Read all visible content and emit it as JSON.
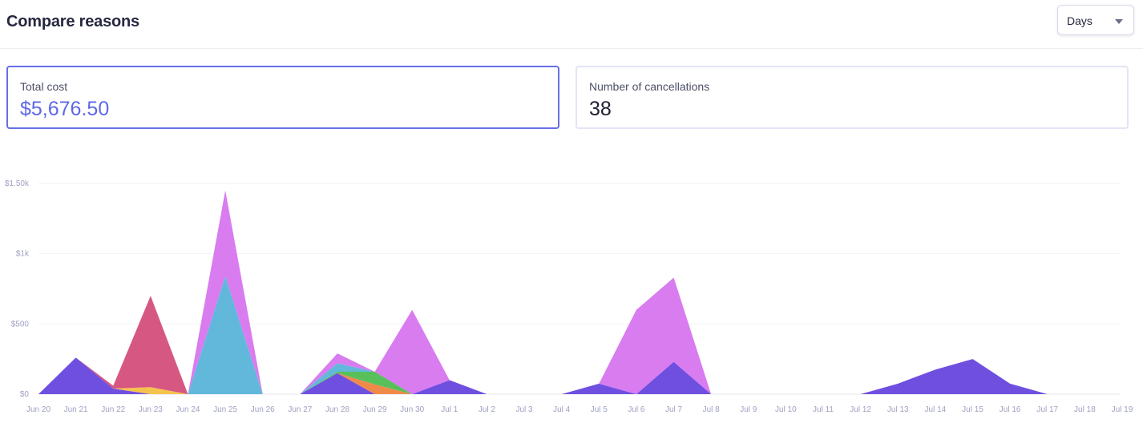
{
  "header": {
    "title": "Compare reasons"
  },
  "period_select": {
    "value": "Days"
  },
  "metrics": [
    {
      "label": "Total cost",
      "value": "$5,676.50",
      "selected": true
    },
    {
      "label": "Number of cancellations",
      "value": "38",
      "selected": false
    }
  ],
  "colors": {
    "accent": "#5d68e8",
    "violet": "#6f4fe0",
    "pink": "#d87cf0",
    "rose": "#d65782",
    "sky": "#61b8db",
    "green": "#58c05a",
    "orange": "#ef8a4a",
    "yellow": "#f6c24e"
  },
  "chart_data": {
    "type": "area",
    "stacked": true,
    "categories": [
      "Jun 20",
      "Jun 21",
      "Jun 22",
      "Jun 23",
      "Jun 24",
      "Jun 25",
      "Jun 26",
      "Jun 27",
      "Jun 28",
      "Jun 29",
      "Jun 30",
      "Jul 1",
      "Jul 2",
      "Jul 3",
      "Jul 4",
      "Jul 5",
      "Jul 6",
      "Jul 7",
      "Jul 8",
      "Jul 9",
      "Jul 10",
      "Jul 11",
      "Jul 12",
      "Jul 13",
      "Jul 14",
      "Jul 15",
      "Jul 16",
      "Jul 17",
      "Jul 18",
      "Jul 19"
    ],
    "y_ticks": [
      "$0",
      "$500",
      "$1k",
      "$1.50k"
    ],
    "ylim": [
      0,
      1500
    ],
    "grid": true,
    "series": [
      {
        "color": "#6f4fe0",
        "values": [
          0,
          260,
          40,
          0,
          0,
          0,
          0,
          0,
          150,
          0,
          0,
          100,
          0,
          0,
          0,
          75,
          0,
          230,
          0,
          0,
          0,
          0,
          0,
          75,
          175,
          250,
          75,
          0,
          0,
          0
        ]
      },
      {
        "color": "#f6c24e",
        "values": [
          0,
          0,
          0,
          50,
          0,
          0,
          0,
          0,
          0,
          0,
          0,
          0,
          0,
          0,
          0,
          0,
          0,
          0,
          0,
          0,
          0,
          0,
          0,
          0,
          0,
          0,
          0,
          0,
          0,
          0
        ]
      },
      {
        "color": "#ef8a4a",
        "values": [
          0,
          0,
          0,
          0,
          0,
          0,
          0,
          0,
          0,
          70,
          0,
          0,
          0,
          0,
          0,
          0,
          0,
          0,
          0,
          0,
          0,
          0,
          0,
          0,
          0,
          0,
          0,
          0,
          0,
          0
        ]
      },
      {
        "color": "#58c05a",
        "values": [
          0,
          0,
          0,
          0,
          0,
          0,
          0,
          0,
          10,
          90,
          0,
          0,
          0,
          0,
          0,
          0,
          0,
          0,
          0,
          0,
          0,
          0,
          0,
          0,
          0,
          0,
          0,
          0,
          0,
          0
        ]
      },
      {
        "color": "#61b8db",
        "values": [
          0,
          0,
          0,
          0,
          0,
          840,
          0,
          0,
          60,
          0,
          0,
          0,
          0,
          0,
          0,
          0,
          0,
          0,
          0,
          0,
          0,
          0,
          0,
          0,
          0,
          0,
          0,
          0,
          0,
          0
        ]
      },
      {
        "color": "#d65782",
        "values": [
          0,
          0,
          20,
          650,
          0,
          0,
          0,
          0,
          0,
          0,
          0,
          0,
          0,
          0,
          0,
          0,
          0,
          0,
          0,
          0,
          0,
          0,
          0,
          0,
          0,
          0,
          0,
          0,
          0,
          0
        ]
      },
      {
        "color": "#d87cf0",
        "values": [
          0,
          0,
          0,
          0,
          0,
          610,
          0,
          0,
          70,
          0,
          600,
          0,
          0,
          0,
          0,
          0,
          600,
          600,
          0,
          0,
          0,
          0,
          0,
          0,
          0,
          0,
          0,
          0,
          0,
          0
        ]
      }
    ]
  }
}
